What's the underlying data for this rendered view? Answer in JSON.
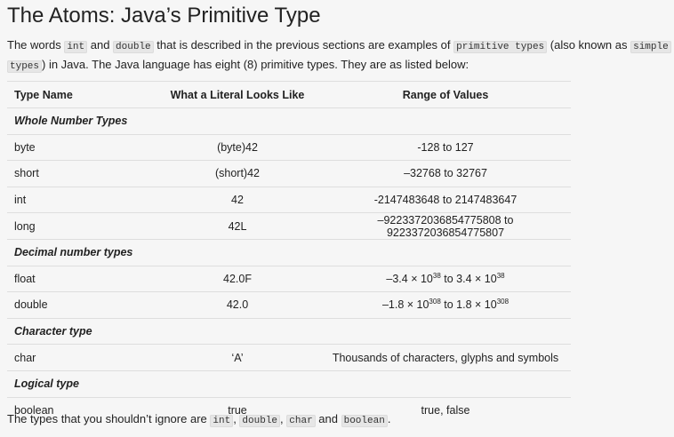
{
  "title": "The Atoms: Java’s Primitive Type",
  "intro": {
    "t1": "The words ",
    "c1": "int",
    "t2": " and ",
    "c2": "double",
    "t3": " that is described in the previous sections are examples of ",
    "c3": "primitive types",
    "t4": " (also known as ",
    "c4a": "simple",
    "c4b": "types",
    "t5": ") in Java. The Java language has eight (8) primitive types. They are as listed below:"
  },
  "table": {
    "headers": [
      "Type Name",
      "What a Literal Looks Like",
      "Range of Values"
    ],
    "groups": {
      "whole": "Whole Number Types",
      "decimal": "Decimal number types",
      "character": "Character type",
      "logical": "Logical type"
    },
    "rows": {
      "byte": {
        "name": "byte",
        "literal": "(byte)42",
        "range": "-128 to 127"
      },
      "short": {
        "name": "short",
        "literal": "(short)42",
        "range": "–32768 to 32767"
      },
      "int": {
        "name": "int",
        "literal": "42",
        "range": "-2147483648 to 2147483647"
      },
      "long": {
        "name": "long",
        "literal": "42L",
        "range": "–9223372036854775808 to 9223372036854775807"
      },
      "float": {
        "name": "float",
        "literal": "42.0F",
        "r_a": "–3.4 × 10",
        "r_a_exp": "38",
        "r_mid": " to 3.4 × 10",
        "r_b_exp": "38"
      },
      "double": {
        "name": "double",
        "literal": "42.0",
        "r_a": "–1.8 × 10",
        "r_a_exp": "308",
        "r_mid": " to 1.8 × 10",
        "r_b_exp": "308"
      },
      "char": {
        "name": "char",
        "literal": "‘A’",
        "range": "Thousands of characters, glyphs and symbols"
      },
      "boolean": {
        "name": "boolean",
        "literal": "true",
        "range": "true, false"
      }
    }
  },
  "footer": {
    "t1": "The types that you shouldn’t ignore are ",
    "c1": "int",
    "s1": ", ",
    "c2": "double",
    "s2": ", ",
    "c3": "char",
    "t2": " and ",
    "c4": "boolean",
    "t3": "."
  }
}
